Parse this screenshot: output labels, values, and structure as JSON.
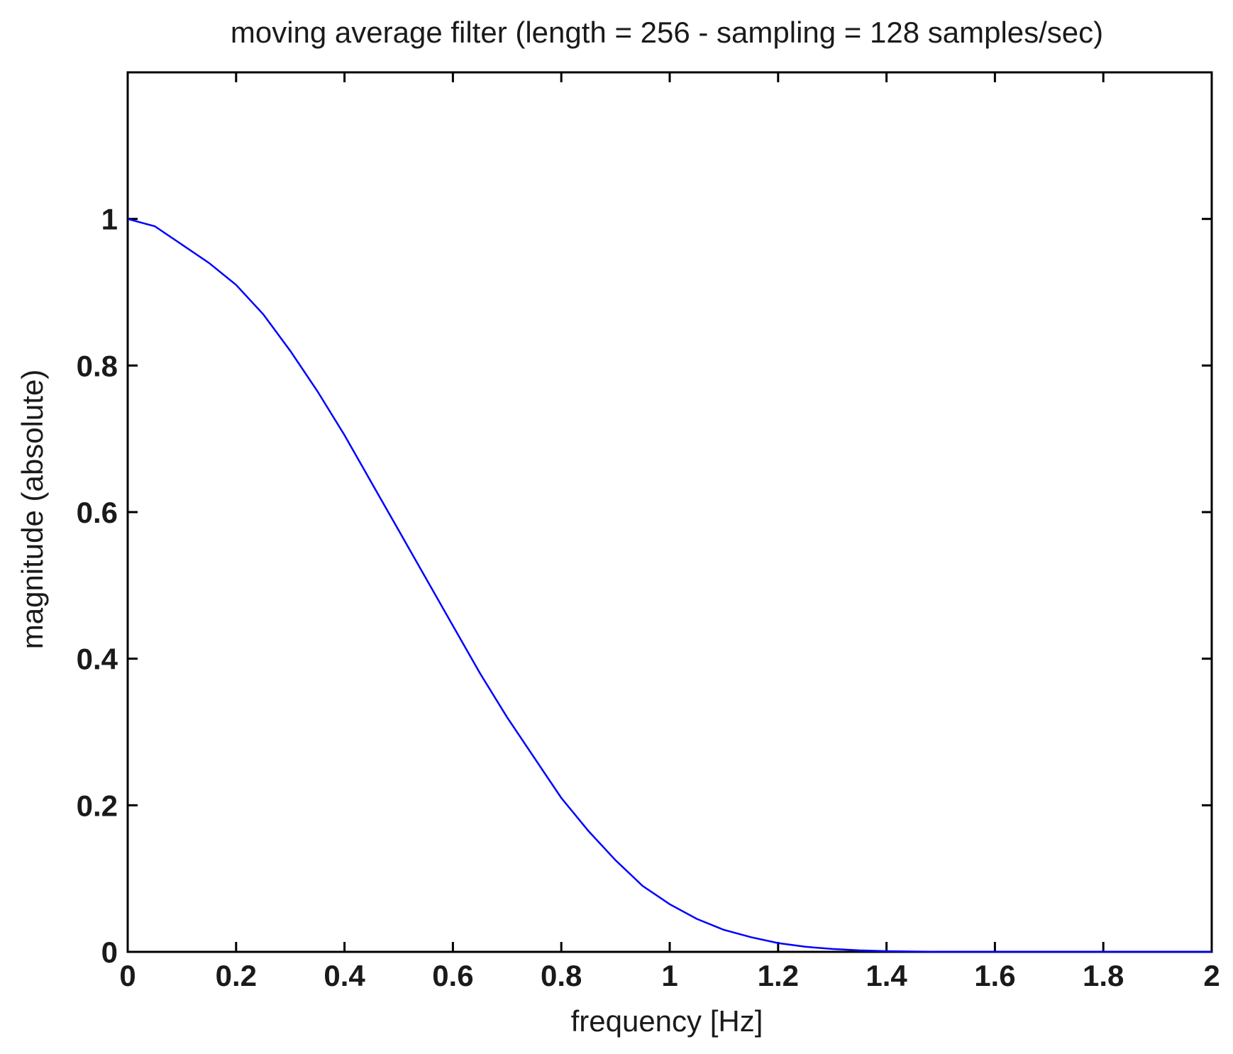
{
  "chart_data": {
    "type": "line",
    "title": "moving average filter (length = 256 - sampling = 128 samples/sec)",
    "xlabel": "frequency [Hz]",
    "ylabel": "magnitude (absolute)",
    "xlim": [
      0,
      2
    ],
    "ylim": [
      0,
      1.2
    ],
    "xticks": [
      0,
      0.2,
      0.4,
      0.6,
      0.8,
      1,
      1.2,
      1.4,
      1.6,
      1.8,
      2
    ],
    "xtick_labels": [
      "0",
      "0.2",
      "0.4",
      "0.6",
      "0.8",
      "1",
      "1.2",
      "1.4",
      "1.6",
      "1.8",
      "2"
    ],
    "yticks": [
      0,
      0.2,
      0.4,
      0.6,
      0.8,
      1
    ],
    "ytick_labels": [
      "0",
      "0.2",
      "0.4",
      "0.6",
      "0.8",
      "1"
    ],
    "grid": false,
    "legend": "none",
    "line_color": "#0000ff",
    "series": [
      {
        "x": [
          0,
          0.05,
          0.1,
          0.15,
          0.2,
          0.25,
          0.3,
          0.35,
          0.4,
          0.45,
          0.5,
          0.55,
          0.6,
          0.65,
          0.7,
          0.75,
          0.8,
          0.85,
          0.9,
          0.95,
          1.0,
          1.05,
          1.1,
          1.15,
          1.2,
          1.25,
          1.3,
          1.35,
          1.4,
          1.5,
          1.6,
          1.7,
          1.8,
          1.9,
          2.0
        ],
        "values": [
          1.0,
          0.99,
          0.965,
          0.94,
          0.91,
          0.87,
          0.82,
          0.765,
          0.705,
          0.64,
          0.575,
          0.51,
          0.445,
          0.38,
          0.32,
          0.265,
          0.21,
          0.165,
          0.125,
          0.09,
          0.065,
          0.045,
          0.03,
          0.02,
          0.012,
          0.007,
          0.004,
          0.002,
          0.001,
          0.0,
          0.0,
          0.0,
          0.0,
          0.0,
          0.0
        ]
      }
    ]
  }
}
